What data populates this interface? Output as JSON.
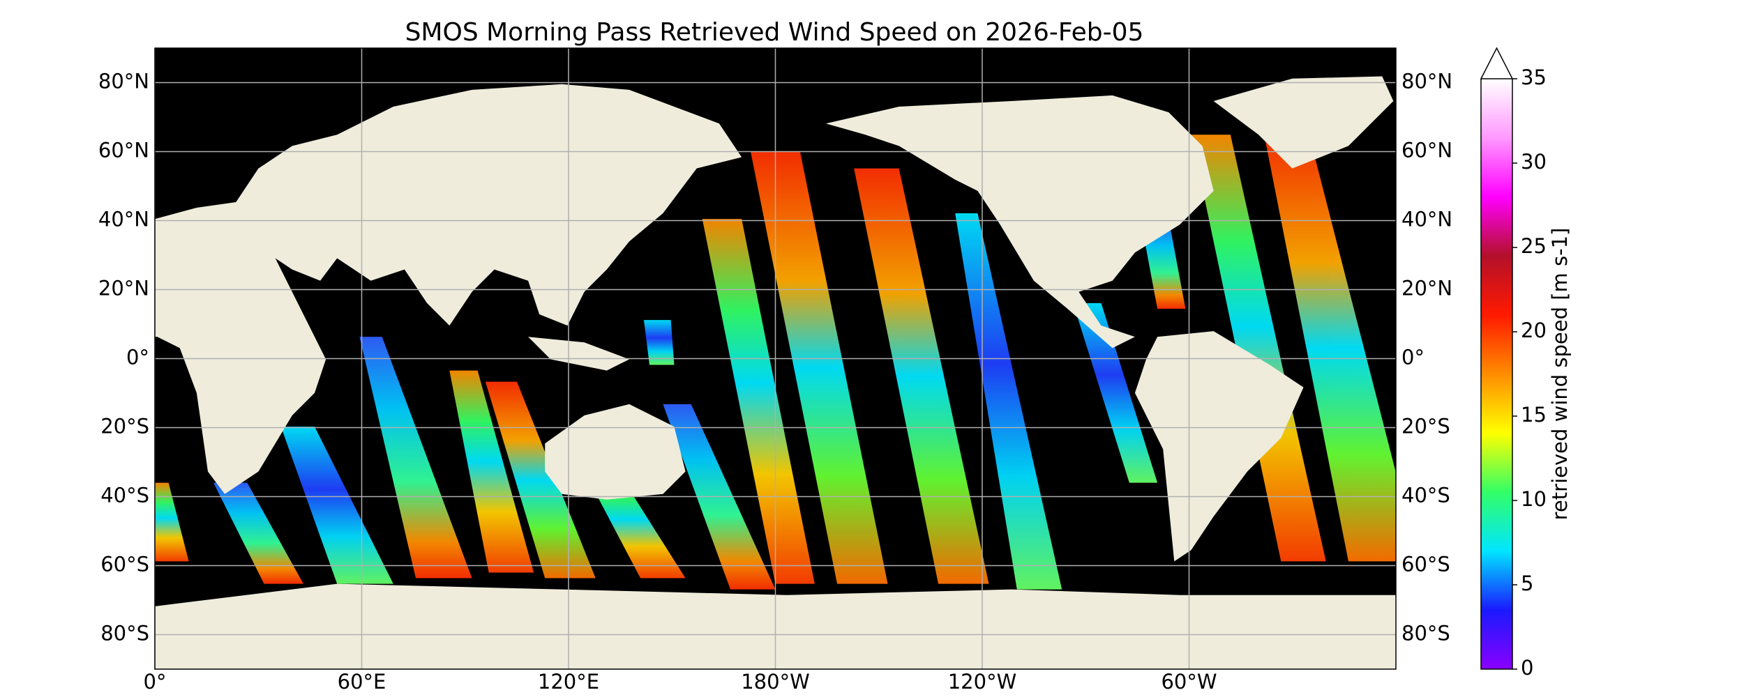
{
  "map": {
    "title": "SMOS Morning Pass Retrieved Wind Speed on 2026-Feb-05",
    "lon_lim": [
      0,
      360
    ],
    "lat_lim": [
      -90,
      90
    ],
    "lat_ticks": [
      {
        "value": 80,
        "label": "80°N"
      },
      {
        "value": 60,
        "label": "60°N"
      },
      {
        "value": 40,
        "label": "40°N"
      },
      {
        "value": 20,
        "label": "20°N"
      },
      {
        "value": 0,
        "label": "0°"
      },
      {
        "value": -20,
        "label": "20°S"
      },
      {
        "value": -40,
        "label": "40°S"
      },
      {
        "value": -60,
        "label": "60°S"
      },
      {
        "value": -80,
        "label": "80°S"
      }
    ],
    "lon_ticks": [
      {
        "value": 0,
        "label": "0°"
      },
      {
        "value": 60,
        "label": "60°E"
      },
      {
        "value": 120,
        "label": "120°E"
      },
      {
        "value": -180,
        "label": "180°W"
      },
      {
        "value": -120,
        "label": "120°W"
      },
      {
        "value": -60,
        "label": "60°W"
      }
    ],
    "grid": true,
    "colorbar": {
      "label": "retrieved wind speed [m s-1]",
      "lim": [
        0,
        35
      ],
      "ticks": [
        0,
        5,
        10,
        15,
        20,
        25,
        30,
        35
      ],
      "extend": "max",
      "colormap": [
        "#8a00ff",
        "#1a1aff",
        "#00e5ff",
        "#33ff66",
        "#ffff00",
        "#ff8c00",
        "#ff1a00",
        "#b3102a",
        "#ff00ff",
        "#ff99ff",
        "#ffffff"
      ]
    }
  }
}
